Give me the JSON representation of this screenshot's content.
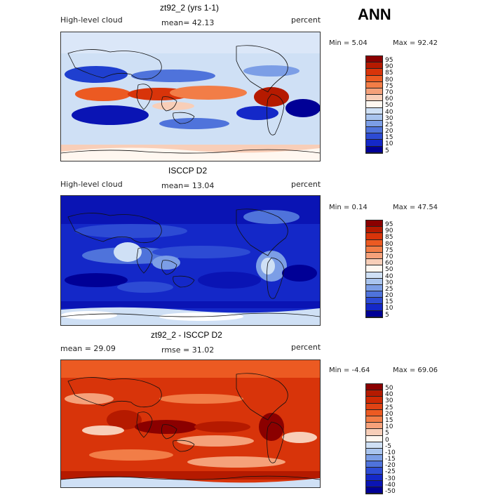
{
  "season": "ANN",
  "panels": [
    {
      "title": "zt92_2 (yrs 1-1)",
      "left_label": "High-level cloud",
      "stat_text": "mean=  42.13",
      "stat2_text": "",
      "units": "percent",
      "min_text": "Min =    5.04",
      "max_text": "Max =   92.42",
      "levels": [
        "95",
        "90",
        "85",
        "80",
        "75",
        "70",
        "60",
        "50",
        "40",
        "30",
        "25",
        "20",
        "15",
        "10",
        "5"
      ],
      "colors": [
        "#8b0000",
        "#b51a00",
        "#d8340a",
        "#ec5a22",
        "#f27d47",
        "#f5a17a",
        "#f8ceb8",
        "#fff7f0",
        "#cfe0f5",
        "#a9c4ee",
        "#7c9ee6",
        "#4f73db",
        "#2d4bd4",
        "#1428c8",
        "#000096"
      ]
    },
    {
      "title": "ISCCP D2",
      "left_label": "High-level cloud",
      "stat_text": "mean=  13.04",
      "stat2_text": "",
      "units": "percent",
      "min_text": "Min =    0.14",
      "max_text": "Max =   47.54",
      "levels": [
        "95",
        "90",
        "85",
        "80",
        "75",
        "70",
        "60",
        "50",
        "40",
        "30",
        "25",
        "20",
        "15",
        "10",
        "5"
      ],
      "colors": [
        "#8b0000",
        "#b51a00",
        "#d8340a",
        "#ec5a22",
        "#f27d47",
        "#f5a17a",
        "#f8ceb8",
        "#fff7f0",
        "#cfe0f5",
        "#a9c4ee",
        "#7c9ee6",
        "#4f73db",
        "#2d4bd4",
        "#1428c8",
        "#000096"
      ]
    },
    {
      "title": "zt92_2 - ISCCP D2",
      "left_label": "mean =   29.09",
      "stat_text": "rmse =   31.02",
      "stat2_text": "",
      "units": "percent",
      "min_text": "Min =  -4.64",
      "max_text": "Max =   69.06",
      "levels": [
        "50",
        "40",
        "30",
        "25",
        "20",
        "15",
        "10",
        "5",
        "0",
        "-5",
        "-10",
        "-15",
        "-20",
        "-25",
        "-30",
        "-40",
        "-50"
      ],
      "colors": [
        "#8b0000",
        "#b51a00",
        "#cf2a04",
        "#e04314",
        "#ec5a22",
        "#f27d47",
        "#f5a17a",
        "#f8ceb8",
        "#fff7f0",
        "#cfe0f5",
        "#a9c4ee",
        "#7c9ee6",
        "#4f73db",
        "#2d4bd4",
        "#1428c8",
        "#0a14b4",
        "#000096"
      ]
    }
  ]
}
